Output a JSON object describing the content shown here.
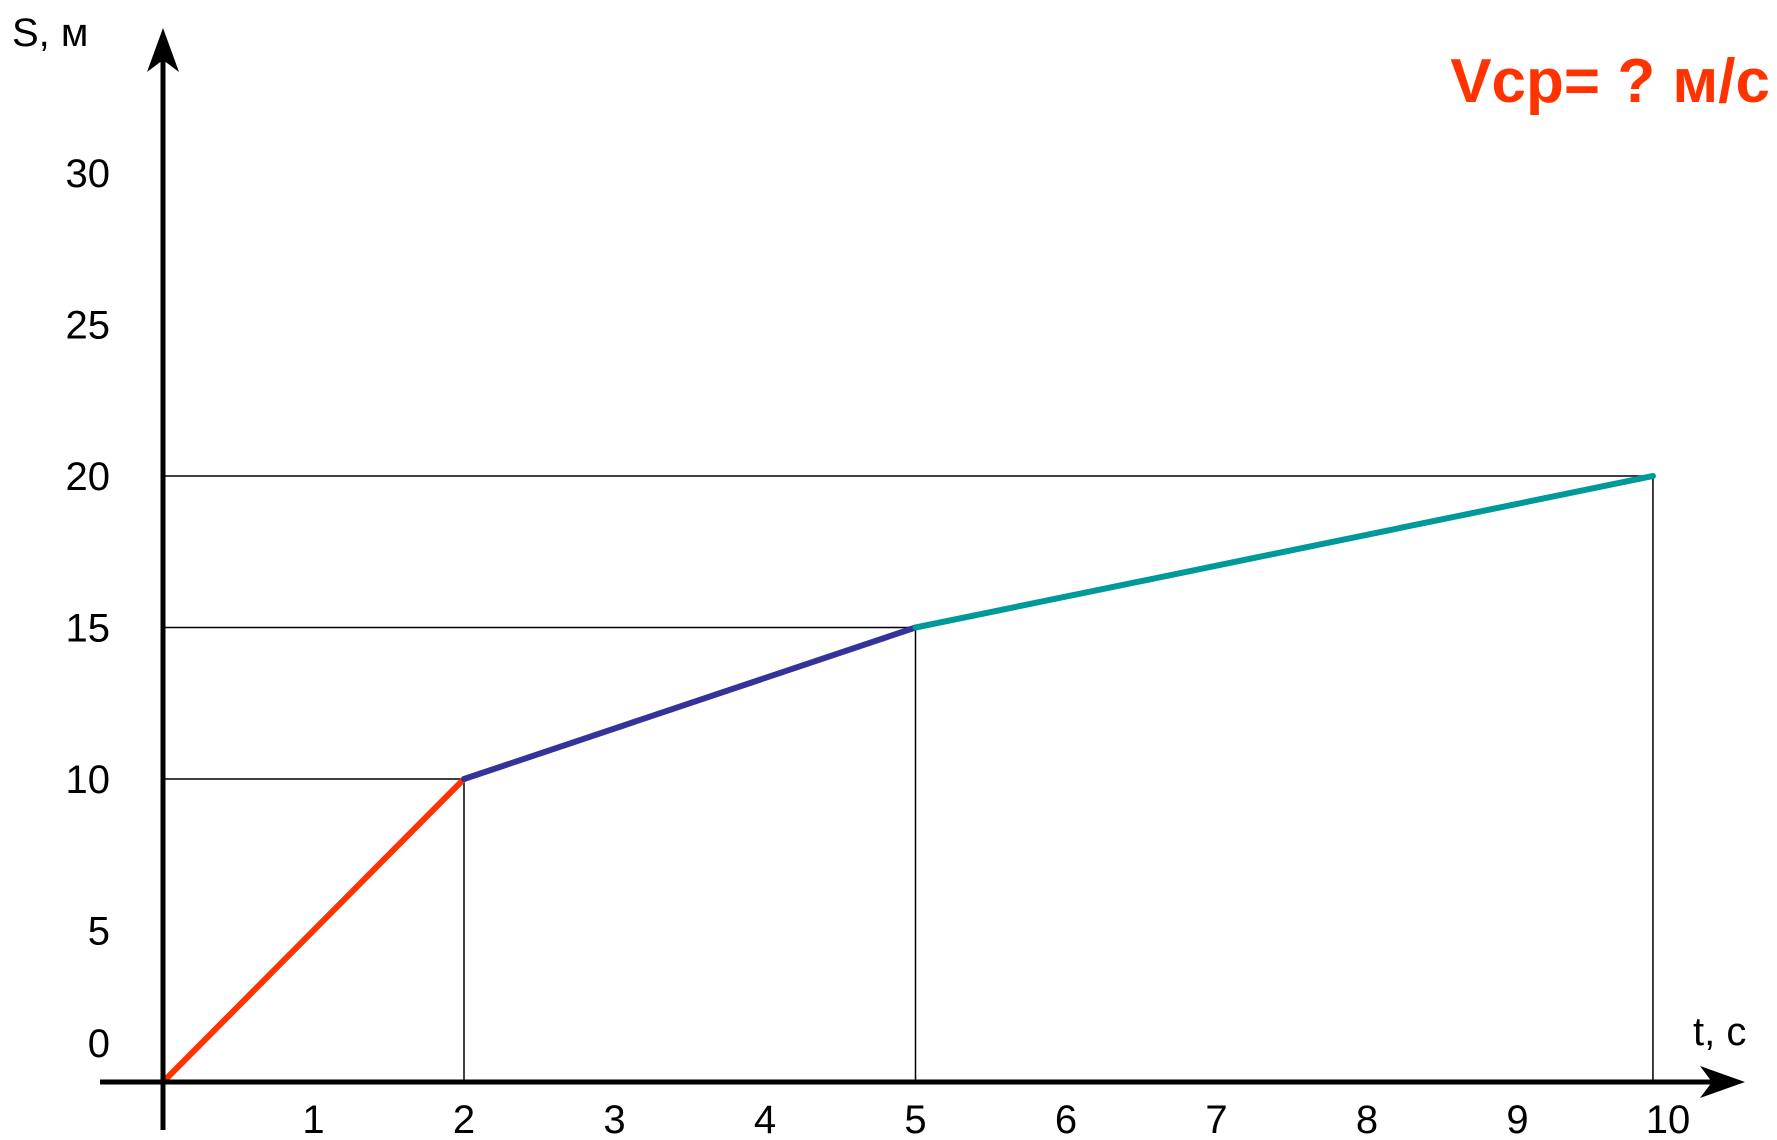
{
  "chart_data": {
    "type": "line",
    "title": "",
    "xlabel": "t, с",
    "ylabel": "S, м",
    "xlim": [
      0,
      10.5
    ],
    "ylim": [
      0,
      30
    ],
    "x_ticks": [
      "1",
      "2",
      "3",
      "4",
      "5",
      "6",
      "7",
      "8",
      "9",
      "10"
    ],
    "y_ticks": [
      "0",
      "5",
      "10",
      "15",
      "20",
      "25",
      "30"
    ],
    "grid": false,
    "segments": [
      {
        "x": [
          0,
          2
        ],
        "y": [
          0,
          10
        ],
        "color": "#ff3300"
      },
      {
        "x": [
          2,
          5
        ],
        "y": [
          10,
          15
        ],
        "color": "#333399"
      },
      {
        "x": [
          5,
          9.9
        ],
        "y": [
          15,
          20
        ],
        "color": "#009999"
      }
    ],
    "guide_points": [
      {
        "x": 2,
        "y": 10
      },
      {
        "x": 5,
        "y": 15
      },
      {
        "x": 9.9,
        "y": 20
      }
    ],
    "annotation": {
      "text": "Vср= ? м/с",
      "color": "#ff3300"
    }
  }
}
